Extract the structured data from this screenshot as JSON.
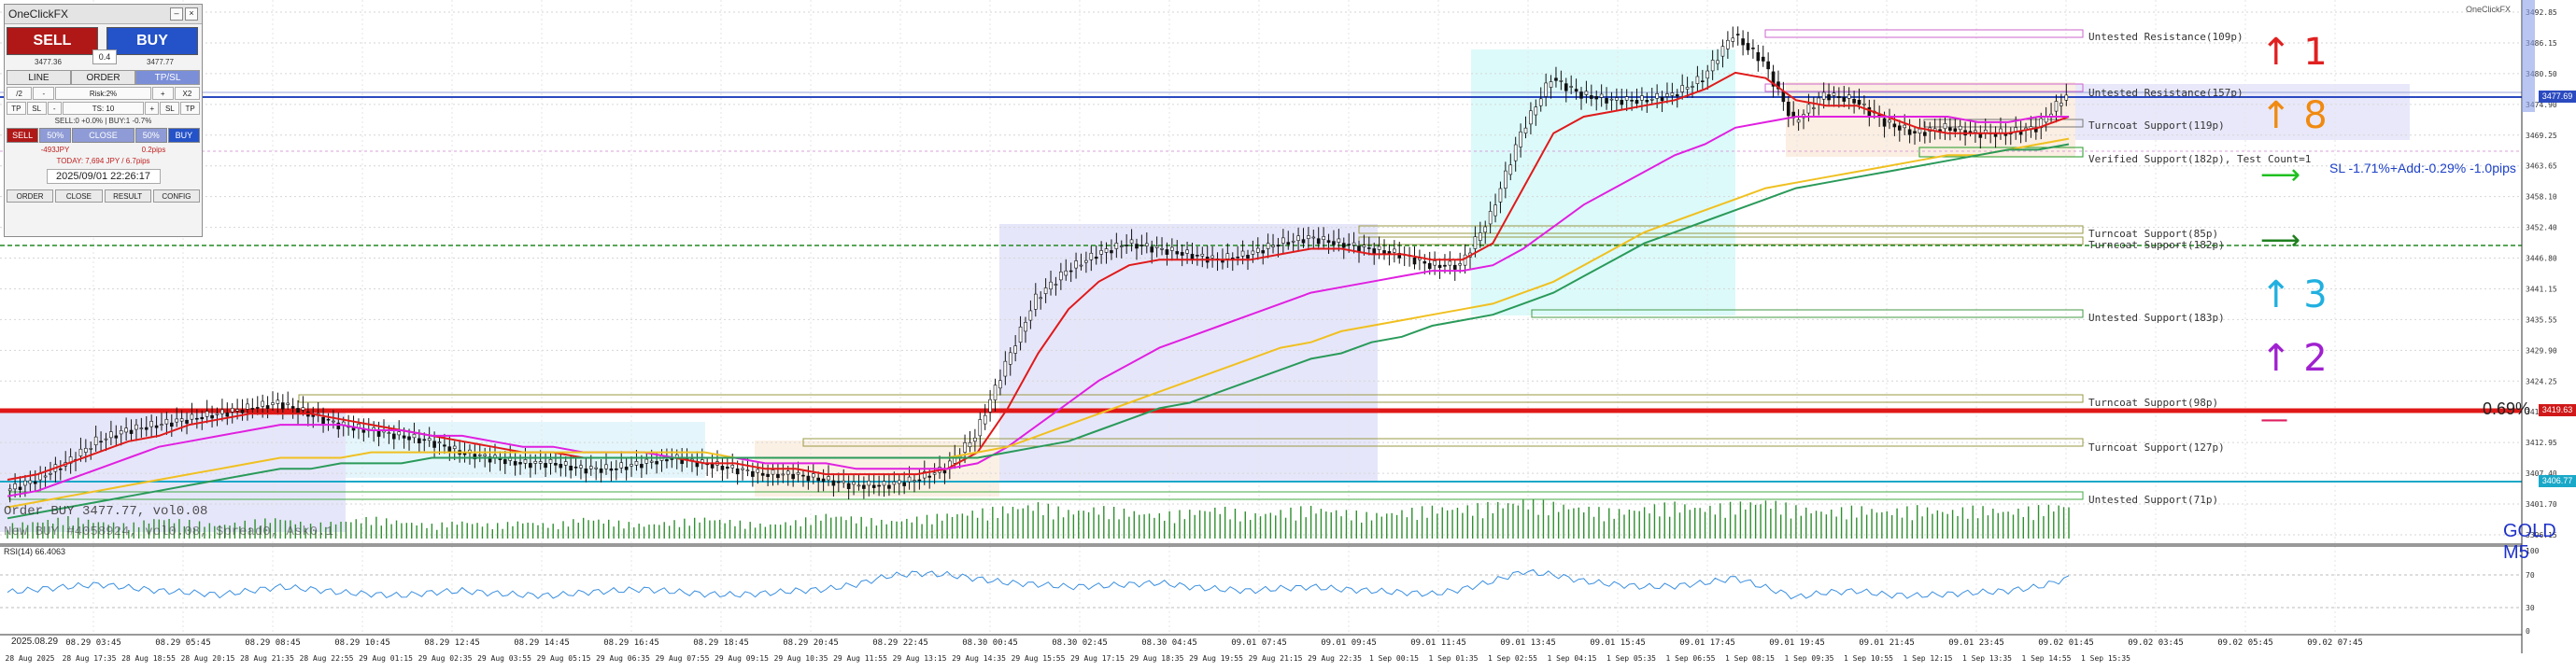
{
  "panel": {
    "title": "OneClickFX",
    "sell_label": "SELL",
    "buy_label": "BUY",
    "lot": "0.4",
    "bid": "3477.36",
    "ask": "3477.77",
    "tabs": [
      "LINE",
      "ORDER",
      "TP/SL"
    ],
    "active_tab": "TP/SL",
    "row1": [
      "/2",
      "-",
      "Risk:2%",
      "+",
      "X2"
    ],
    "row2": [
      "TP",
      "SL",
      "-",
      "TS: 10",
      "+",
      "SL",
      "TP"
    ],
    "position_info": "SELL:0 +0.0%  |  BUY:1 -0.7%",
    "actions": [
      "SELL",
      "50%",
      "CLOSE",
      "50%",
      "BUY"
    ],
    "pl_left": "-493JPY",
    "pl_right": "0.2pips",
    "today": "TODAY: 7,694 JPY / 6.7pips",
    "datetime": "2025/09/01  22:26:17",
    "footer": [
      "ORDER",
      "CLOSE",
      "RESULT",
      "CONFIG"
    ]
  },
  "chart": {
    "symbol_label": "GOLD M5",
    "corner_label": "OneClickFX",
    "indicator_label": "RSI(14) 66.4063",
    "rsi_ticks": [
      "100",
      "70",
      "30",
      "0"
    ],
    "order_text_1": "Order BUY 3477.77, vol0.08",
    "order_text_2": "New BUY #4058924, vol0.08, Spread0, Ask0.1",
    "sl_text": "SL -1.71%+Add:-0.29% -1.0pips",
    "fib_text": "0.69%",
    "price_ticks": [
      "3492.85",
      "3486.15",
      "3480.50",
      "3474.90",
      "3469.25",
      "3463.65",
      "3458.10",
      "3452.40",
      "3446.80",
      "3441.15",
      "3435.55",
      "3429.90",
      "3424.25",
      "3418.65",
      "3412.95",
      "3407.40",
      "3401.70",
      "3396.15"
    ],
    "price_tags": [
      {
        "text": "3477.69",
        "color": "#2b4ac0"
      },
      {
        "text": "3419.63",
        "color": "#d01818"
      },
      {
        "text": "3406.77",
        "color": "#1aa8c8"
      }
    ],
    "zones": [
      {
        "label": "Untested Resistance(109p)"
      },
      {
        "label": "Untested Resistance(157p)"
      },
      {
        "label": "Turncoat Support(119p)"
      },
      {
        "label": "Verified Support(182p), Test Count=1"
      },
      {
        "label": "Turncoat Support(85p)"
      },
      {
        "label": "Turncoat Support(182p)"
      },
      {
        "label": "Untested Support(183p)"
      },
      {
        "label": "Turncoat Support(98p)"
      },
      {
        "label": "Turncoat Support(127p)"
      },
      {
        "label": "Untested Support(71p)"
      }
    ],
    "arrows": [
      {
        "glyph": "↑",
        "num": "1",
        "color": "#e02020"
      },
      {
        "glyph": "↑",
        "num": "8",
        "color": "#f08a10"
      },
      {
        "glyph": "⟶",
        "num": "",
        "color": "#20c020"
      },
      {
        "glyph": "⟶",
        "num": "",
        "color": "#208020"
      },
      {
        "glyph": "↑",
        "num": "3",
        "color": "#20b0e0"
      },
      {
        "glyph": "↑",
        "num": "2",
        "color": "#a020d0"
      },
      {
        "glyph": "—",
        "num": "",
        "color": "#e02060"
      }
    ],
    "date_label": "2025.08.29",
    "time_ticks_top": [
      "08.29 03:45",
      "08.29 05:45",
      "08.29 08:45",
      "08.29 10:45",
      "08.29 12:45",
      "08.29 14:45",
      "08.29 16:45",
      "08.29 18:45",
      "08.29 20:45",
      "08.29 22:45",
      "08.30 00:45",
      "08.30 02:45",
      "08.30 04:45",
      "09.01 07:45",
      "09.01 09:45",
      "09.01 11:45",
      "09.01 13:45",
      "09.01 15:45",
      "09.01 17:45",
      "09.01 19:45",
      "09.01 21:45",
      "09.01 23:45",
      "09.02 01:45",
      "09.02 03:45",
      "09.02 05:45",
      "09.02 07:45"
    ],
    "time_ticks_bottom": [
      "28 Aug 2025",
      "28 Aug 17:35",
      "28 Aug 18:55",
      "28 Aug 20:15",
      "28 Aug 21:35",
      "28 Aug 22:55",
      "29 Aug 01:15",
      "29 Aug 02:35",
      "29 Aug 03:55",
      "29 Aug 05:15",
      "29 Aug 06:35",
      "29 Aug 07:55",
      "29 Aug 09:15",
      "29 Aug 10:35",
      "29 Aug 11:55",
      "29 Aug 13:15",
      "29 Aug 14:35",
      "29 Aug 15:55",
      "29 Aug 17:15",
      "29 Aug 18:35",
      "29 Aug 19:55",
      "29 Aug 21:15",
      "29 Aug 22:35",
      "1 Sep 00:15",
      "1 Sep 01:35",
      "1 Sep 02:55",
      "1 Sep 04:15",
      "1 Sep 05:35",
      "1 Sep 06:55",
      "1 Sep 08:15",
      "1 Sep 09:35",
      "1 Sep 10:55",
      "1 Sep 12:15",
      "1 Sep 13:35",
      "1 Sep 14:55",
      "1 Sep 15:35"
    ]
  },
  "chart_data": {
    "type": "line",
    "ylim": [
      3396.15,
      3492.85
    ],
    "series": [
      {
        "values": [
          3405,
          3407,
          3410,
          3414,
          3416,
          3417,
          3418,
          3419,
          3420,
          3421,
          3419,
          3417,
          3416,
          3415,
          3414,
          3412,
          3411,
          3410,
          3410,
          3409,
          3409,
          3410,
          3411,
          3410,
          3409,
          3408,
          3408,
          3407,
          3406,
          3406,
          3407,
          3409,
          3415,
          3428,
          3440,
          3445,
          3448,
          3450,
          3449,
          3448,
          3447,
          3448,
          3450,
          3451,
          3450,
          3449,
          3448,
          3446,
          3446,
          3455,
          3470,
          3480,
          3477,
          3476,
          3476,
          3477,
          3480,
          3488,
          3483,
          3472,
          3477,
          3476,
          3472,
          3470,
          3471,
          3470,
          3470,
          3471,
          3477
        ]
      },
      {
        "values": [
          3407,
          3408,
          3410,
          3412,
          3414,
          3415,
          3417,
          3418,
          3419,
          3419,
          3419,
          3418,
          3417,
          3416,
          3415,
          3414,
          3413,
          3412,
          3412,
          3411,
          3411,
          3411,
          3411,
          3410,
          3410,
          3409,
          3409,
          3408,
          3408,
          3408,
          3408,
          3409,
          3412,
          3420,
          3430,
          3438,
          3443,
          3446,
          3447,
          3447,
          3447,
          3447,
          3448,
          3449,
          3449,
          3448,
          3448,
          3447,
          3447,
          3450,
          3460,
          3470,
          3473,
          3474,
          3475,
          3476,
          3478,
          3481,
          3480,
          3476,
          3475,
          3475,
          3473,
          3471,
          3470,
          3470,
          3470,
          3471,
          3473
        ]
      },
      {
        "values": [
          3404,
          3405,
          3407,
          3409,
          3411,
          3413,
          3414,
          3415,
          3416,
          3417,
          3417,
          3417,
          3416,
          3416,
          3415,
          3415,
          3414,
          3413,
          3413,
          3412,
          3412,
          3412,
          3411,
          3411,
          3411,
          3410,
          3410,
          3410,
          3409,
          3409,
          3409,
          3409,
          3410,
          3413,
          3417,
          3421,
          3425,
          3428,
          3431,
          3433,
          3435,
          3437,
          3439,
          3441,
          3442,
          3443,
          3444,
          3445,
          3445,
          3446,
          3449,
          3453,
          3457,
          3460,
          3463,
          3466,
          3468,
          3471,
          3472,
          3473,
          3473,
          3473,
          3473,
          3473,
          3473,
          3472,
          3472,
          3473,
          3473
        ]
      },
      {
        "values": [
          3402,
          3403,
          3404,
          3405,
          3406,
          3407,
          3408,
          3409,
          3410,
          3411,
          3411,
          3411,
          3412,
          3412,
          3412,
          3412,
          3412,
          3412,
          3412,
          3412,
          3412,
          3412,
          3412,
          3412,
          3411,
          3411,
          3411,
          3411,
          3411,
          3411,
          3411,
          3411,
          3412,
          3413,
          3415,
          3417,
          3419,
          3421,
          3423,
          3425,
          3427,
          3429,
          3431,
          3432,
          3434,
          3435,
          3436,
          3437,
          3438,
          3439,
          3441,
          3443,
          3446,
          3449,
          3452,
          3454,
          3456,
          3458,
          3460,
          3461,
          3462,
          3463,
          3464,
          3465,
          3466,
          3466,
          3467,
          3468,
          3469
        ]
      },
      {
        "values": [
          3400,
          3401,
          3402,
          3403,
          3404,
          3405,
          3406,
          3407,
          3408,
          3409,
          3409,
          3410,
          3410,
          3410,
          3411,
          3411,
          3411,
          3411,
          3411,
          3411,
          3411,
          3411,
          3411,
          3411,
          3411,
          3411,
          3411,
          3411,
          3411,
          3411,
          3411,
          3411,
          3411,
          3412,
          3413,
          3414,
          3416,
          3418,
          3420,
          3421,
          3423,
          3425,
          3427,
          3429,
          3430,
          3432,
          3433,
          3435,
          3436,
          3437,
          3439,
          3441,
          3444,
          3447,
          3450,
          3452,
          3454,
          3456,
          3458,
          3460,
          3461,
          3462,
          3463,
          3464,
          3465,
          3466,
          3467,
          3467,
          3468
        ]
      }
    ],
    "series_colors": [
      "#1a1a1a",
      "#e01a1a",
      "#e020e0",
      "#f0c020",
      "#2a9a5a"
    ],
    "volume": [
      4,
      5,
      6,
      5,
      4,
      6,
      5,
      4,
      5,
      6,
      4,
      5,
      6,
      5,
      4,
      5,
      4,
      5,
      4,
      6,
      5,
      4,
      5,
      6,
      5,
      4,
      5,
      7,
      6,
      5,
      6,
      7,
      8,
      9,
      10,
      8,
      9,
      8,
      7,
      8,
      9,
      7,
      8,
      9,
      8,
      7,
      8,
      9,
      9,
      10,
      11,
      10,
      9,
      8,
      9,
      10,
      9,
      10,
      11,
      9,
      8,
      9,
      8,
      9,
      8,
      9,
      8,
      9,
      10
    ],
    "rsi": [
      48,
      52,
      55,
      58,
      54,
      50,
      48,
      45,
      50,
      55,
      52,
      48,
      46,
      44,
      48,
      50,
      47,
      45,
      44,
      48,
      50,
      52,
      49,
      46,
      45,
      47,
      50,
      52,
      58,
      68,
      72,
      70,
      65,
      60,
      58,
      55,
      56,
      58,
      60,
      55,
      52,
      50,
      53,
      55,
      52,
      50,
      48,
      46,
      52,
      62,
      74,
      70,
      62,
      58,
      55,
      56,
      60,
      66,
      54,
      42,
      48,
      50,
      45,
      44,
      46,
      48,
      50,
      55,
      66
    ]
  }
}
